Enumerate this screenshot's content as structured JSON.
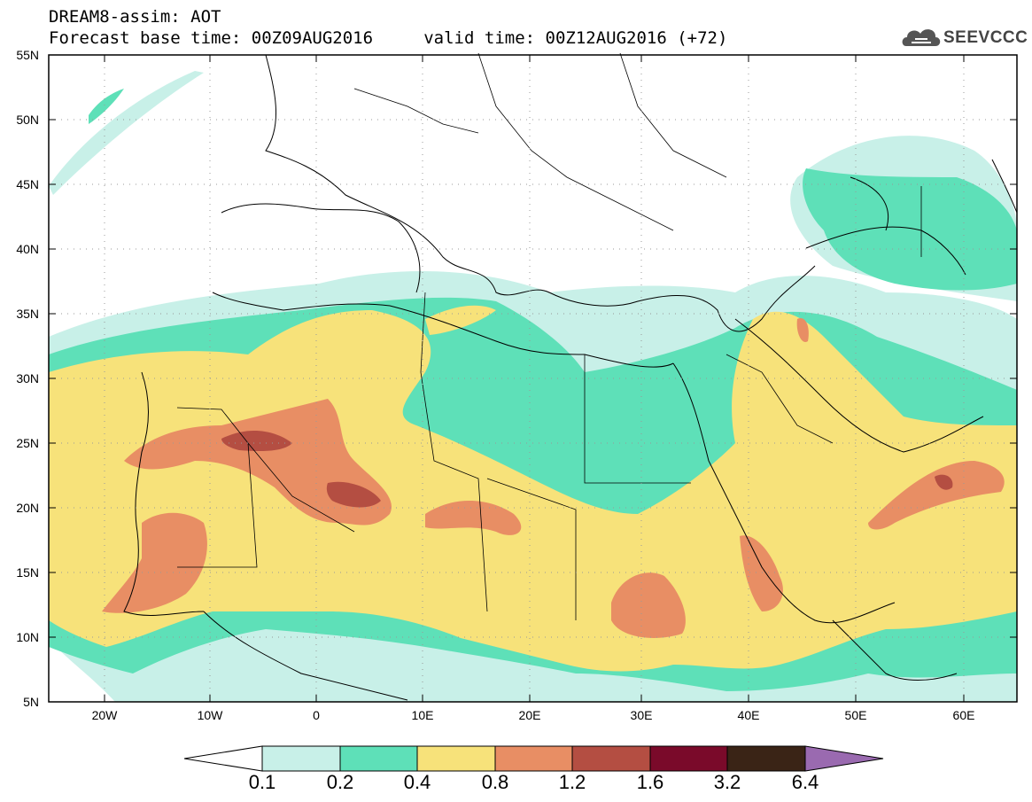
{
  "header": {
    "title_line1": "DREAM8-assim: AOT",
    "title_line2": "Forecast base time: 00Z09AUG2016     valid time: 00Z12AUG2016 (+72)",
    "logo_text": "SEEVCCC"
  },
  "map": {
    "lat_labels": [
      "55N",
      "50N",
      "45N",
      "40N",
      "35N",
      "30N",
      "25N",
      "20N",
      "15N",
      "10N",
      "5N"
    ],
    "lon_labels": [
      "20W",
      "10W",
      "0",
      "10E",
      "20E",
      "30E",
      "40E",
      "50E",
      "60E"
    ]
  },
  "legend": {
    "levels": [
      "0.1",
      "0.2",
      "0.4",
      "0.8",
      "1.2",
      "1.6",
      "3.2",
      "6.4"
    ],
    "colors": {
      "0.1-0.2": "#c8f0e8",
      "0.2-0.4": "#5ee0b8",
      "0.4-0.8": "#f7e27a",
      "0.8-1.2": "#e88e64",
      "1.2-1.6": "#b44e42",
      "1.6-3.2": "#7a0a2a",
      "3.2-6.4": "#3a2416",
      "over": "#9a6ab0"
    }
  }
}
